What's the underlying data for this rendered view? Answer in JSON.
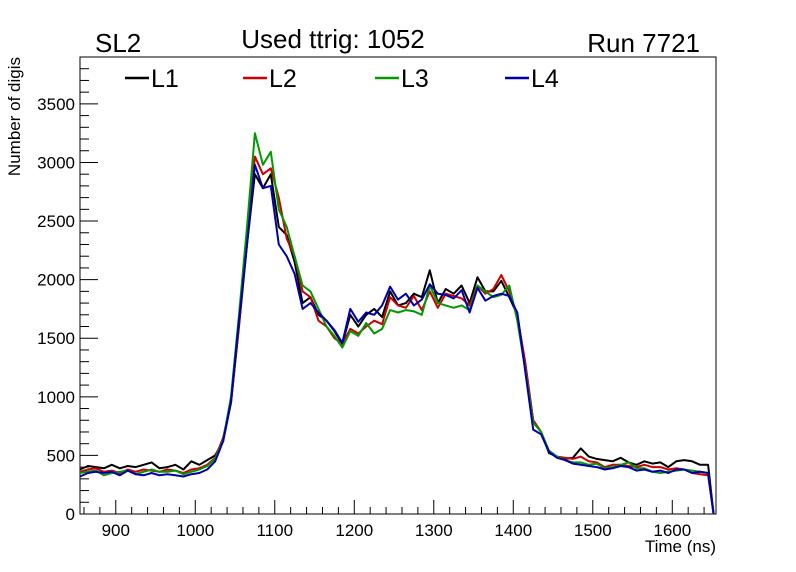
{
  "chart_data": {
    "type": "line",
    "title": "Used ttrig: 1052",
    "top_left_label": "SL2",
    "top_right_label": "Run 7721",
    "xlabel": "Time (ns)",
    "ylabel": "Number of digis",
    "xlim": [
      855,
      1655
    ],
    "ylim": [
      0,
      3900
    ],
    "x_ticks": [
      900,
      1000,
      1100,
      1200,
      1300,
      1400,
      1500,
      1600
    ],
    "x_tick_labels": [
      "900",
      "1000",
      "1100",
      "1200",
      "1300",
      "1400",
      "1500",
      "1600"
    ],
    "y_ticks": [
      0,
      500,
      1000,
      1500,
      2000,
      2500,
      3000,
      3500
    ],
    "y_tick_labels": [
      "0",
      "500",
      "1000",
      "1500",
      "2000",
      "2500",
      "3000",
      "3500"
    ],
    "grid": false,
    "legend_position": "top",
    "x": [
      855,
      865,
      875,
      885,
      895,
      905,
      915,
      925,
      935,
      945,
      955,
      965,
      975,
      985,
      995,
      1005,
      1015,
      1025,
      1035,
      1045,
      1055,
      1065,
      1075,
      1085,
      1095,
      1105,
      1115,
      1125,
      1135,
      1145,
      1155,
      1165,
      1175,
      1185,
      1195,
      1205,
      1215,
      1225,
      1235,
      1245,
      1255,
      1265,
      1275,
      1285,
      1295,
      1305,
      1315,
      1325,
      1335,
      1345,
      1355,
      1365,
      1375,
      1385,
      1395,
      1405,
      1415,
      1425,
      1435,
      1445,
      1455,
      1465,
      1475,
      1485,
      1495,
      1505,
      1515,
      1525,
      1535,
      1545,
      1555,
      1565,
      1575,
      1585,
      1595,
      1605,
      1615,
      1625,
      1635,
      1645,
      1652
    ],
    "series": [
      {
        "name": "L1",
        "color": "#000000",
        "values": [
          380,
          410,
          400,
          390,
          420,
          390,
          410,
          400,
          420,
          440,
          390,
          400,
          420,
          380,
          450,
          420,
          460,
          500,
          620,
          950,
          1600,
          2300,
          2900,
          2780,
          2900,
          2450,
          2380,
          2150,
          1800,
          1850,
          1700,
          1650,
          1560,
          1450,
          1700,
          1600,
          1700,
          1750,
          1680,
          1900,
          1780,
          1800,
          1880,
          1850,
          2080,
          1800,
          1920,
          1880,
          1950,
          1800,
          2020,
          1900,
          1900,
          1990,
          1850,
          1700,
          1280,
          800,
          700,
          520,
          490,
          470,
          480,
          560,
          490,
          470,
          460,
          450,
          480,
          440,
          420,
          450,
          430,
          440,
          400,
          450,
          460,
          450,
          420,
          420,
          0
        ]
      },
      {
        "name": "L2",
        "color": "#cc0000",
        "values": [
          360,
          380,
          390,
          360,
          370,
          350,
          380,
          360,
          380,
          370,
          360,
          380,
          370,
          350,
          380,
          390,
          420,
          480,
          650,
          950,
          1620,
          2350,
          3050,
          2900,
          2950,
          2700,
          2350,
          2200,
          1900,
          1850,
          1650,
          1600,
          1500,
          1450,
          1580,
          1540,
          1600,
          1650,
          1620,
          1850,
          1780,
          1760,
          1860,
          1740,
          1900,
          1760,
          1880,
          1860,
          1840,
          1780,
          1950,
          1880,
          1920,
          2040,
          1900,
          1680,
          1300,
          800,
          700,
          530,
          490,
          480,
          470,
          490,
          450,
          440,
          400,
          420,
          420,
          410,
          400,
          420,
          400,
          400,
          380,
          390,
          380,
          350,
          340,
          330,
          0
        ]
      },
      {
        "name": "L3",
        "color": "#009900",
        "values": [
          350,
          360,
          370,
          330,
          350,
          360,
          370,
          340,
          360,
          380,
          360,
          360,
          370,
          340,
          360,
          380,
          410,
          470,
          630,
          1000,
          1700,
          2450,
          3250,
          2980,
          3090,
          2600,
          2450,
          2200,
          1950,
          1900,
          1750,
          1600,
          1520,
          1420,
          1560,
          1520,
          1630,
          1540,
          1580,
          1740,
          1720,
          1740,
          1730,
          1700,
          1950,
          1800,
          1780,
          1760,
          1780,
          1740,
          1950,
          1900,
          1850,
          1870,
          1950,
          1650,
          1240,
          780,
          700,
          540,
          490,
          460,
          440,
          440,
          420,
          430,
          390,
          400,
          420,
          440,
          390,
          390,
          360,
          350,
          360,
          370,
          380,
          370,
          360,
          350,
          0
        ]
      },
      {
        "name": "L4",
        "color": "#0000aa",
        "values": [
          320,
          350,
          360,
          350,
          360,
          330,
          370,
          340,
          330,
          350,
          330,
          340,
          330,
          320,
          340,
          350,
          380,
          450,
          620,
          960,
          1650,
          2300,
          2980,
          2780,
          2800,
          2300,
          2200,
          2050,
          1750,
          1800,
          1720,
          1650,
          1570,
          1460,
          1750,
          1640,
          1720,
          1700,
          1780,
          1940,
          1830,
          1880,
          1780,
          1830,
          1960,
          1880,
          1870,
          1840,
          1910,
          1720,
          1930,
          1820,
          1860,
          1880,
          1860,
          1720,
          1220,
          720,
          680,
          530,
          480,
          460,
          430,
          420,
          410,
          400,
          380,
          390,
          410,
          400,
          370,
          380,
          360,
          370,
          350,
          380,
          380,
          350,
          360,
          350,
          0
        ]
      }
    ]
  }
}
